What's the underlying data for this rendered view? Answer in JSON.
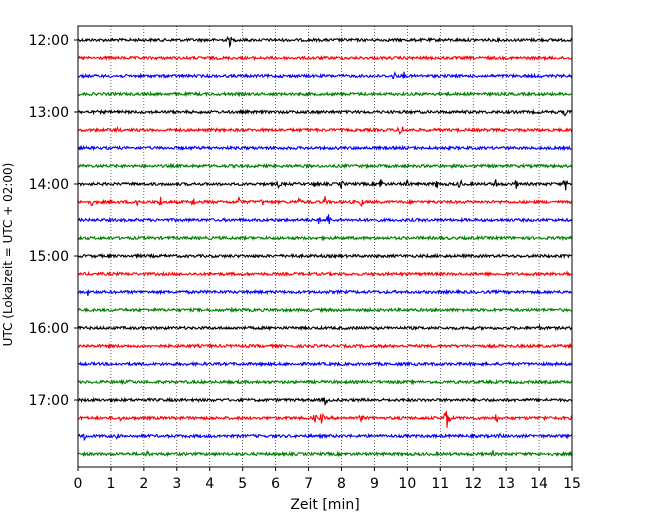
{
  "chart_data": {
    "type": "line",
    "title": "",
    "xlabel": "Zeit  [min]",
    "ylabel": "UTC (Lokalzeit = UTC + 02:00)",
    "xlim": [
      0,
      15
    ],
    "x_ticks": [
      "0",
      "1",
      "2",
      "3",
      "4",
      "5",
      "6",
      "7",
      "8",
      "9",
      "10",
      "11",
      "12",
      "13",
      "14",
      "15"
    ],
    "y_tick_labels": [
      "12:00",
      "13:00",
      "14:00",
      "15:00",
      "16:00",
      "17:00"
    ],
    "grid": "vertical dotted at each minute",
    "row_interval_minutes": 15,
    "series": [
      {
        "start": "12:00",
        "color": "#000000",
        "events": [
          {
            "t": 4.6,
            "a": 8
          }
        ]
      },
      {
        "start": "12:15",
        "color": "#ff0000",
        "events": []
      },
      {
        "start": "12:30",
        "color": "#0000ff",
        "events": [
          {
            "t": 9.6,
            "a": 6
          },
          {
            "t": 9.9,
            "a": 5
          }
        ]
      },
      {
        "start": "12:45",
        "color": "#008000",
        "events": []
      },
      {
        "start": "13:00",
        "color": "#000000",
        "events": [
          {
            "t": 14.8,
            "a": 6
          }
        ]
      },
      {
        "start": "13:15",
        "color": "#ff0000",
        "events": [
          {
            "t": 9.8,
            "a": 11
          },
          {
            "t": 1.2,
            "a": 4
          }
        ]
      },
      {
        "start": "13:30",
        "color": "#0000ff",
        "events": []
      },
      {
        "start": "13:45",
        "color": "#008000",
        "events": []
      },
      {
        "start": "14:00",
        "color": "#000000",
        "events": [
          {
            "t": 6.1,
            "a": 6
          },
          {
            "t": 7.2,
            "a": 5
          },
          {
            "t": 8.0,
            "a": 6
          },
          {
            "t": 9.2,
            "a": 8
          },
          {
            "t": 10.0,
            "a": 6
          },
          {
            "t": 10.9,
            "a": 6
          },
          {
            "t": 11.6,
            "a": 7
          },
          {
            "t": 12.7,
            "a": 7
          },
          {
            "t": 13.3,
            "a": 6
          },
          {
            "t": 14.8,
            "a": 8
          }
        ]
      },
      {
        "start": "14:15",
        "color": "#ff0000",
        "events": [
          {
            "t": 0.4,
            "a": 6
          },
          {
            "t": 1.8,
            "a": 8
          },
          {
            "t": 2.5,
            "a": 7
          },
          {
            "t": 3.5,
            "a": 6
          },
          {
            "t": 4.9,
            "a": 7
          },
          {
            "t": 5.6,
            "a": 5
          },
          {
            "t": 6.7,
            "a": 6
          },
          {
            "t": 7.5,
            "a": 6
          },
          {
            "t": 8.6,
            "a": 6
          }
        ]
      },
      {
        "start": "14:30",
        "color": "#0000ff",
        "events": [
          {
            "t": 7.6,
            "a": 9
          },
          {
            "t": 7.3,
            "a": 5
          }
        ]
      },
      {
        "start": "14:45",
        "color": "#008000",
        "events": []
      },
      {
        "start": "15:00",
        "color": "#000000",
        "events": [
          {
            "t": 6.5,
            "a": 4
          }
        ]
      },
      {
        "start": "15:15",
        "color": "#ff0000",
        "events": [
          {
            "t": 14.8,
            "a": 7
          }
        ]
      },
      {
        "start": "15:30",
        "color": "#0000ff",
        "events": [
          {
            "t": 0.3,
            "a": 4
          }
        ]
      },
      {
        "start": "15:45",
        "color": "#008000",
        "events": [
          {
            "t": 4.7,
            "a": 3
          }
        ]
      },
      {
        "start": "16:00",
        "color": "#000000",
        "events": [
          {
            "t": 14.0,
            "a": 4
          }
        ]
      },
      {
        "start": "16:15",
        "color": "#ff0000",
        "events": []
      },
      {
        "start": "16:30",
        "color": "#0000ff",
        "events": []
      },
      {
        "start": "16:45",
        "color": "#008000",
        "events": [
          {
            "t": 1.6,
            "a": 4
          }
        ]
      },
      {
        "start": "17:00",
        "color": "#000000",
        "events": [
          {
            "t": 7.5,
            "a": 7
          }
        ]
      },
      {
        "start": "17:15",
        "color": "#ff0000",
        "events": [
          {
            "t": 11.2,
            "a": 18
          },
          {
            "t": 7.2,
            "a": 6
          },
          {
            "t": 7.4,
            "a": 7
          },
          {
            "t": 8.6,
            "a": 6
          },
          {
            "t": 12.7,
            "a": 6
          },
          {
            "t": 14.2,
            "a": 4
          },
          {
            "t": 1.3,
            "a": 4
          }
        ]
      },
      {
        "start": "17:30",
        "color": "#0000ff",
        "events": [
          {
            "t": 0.2,
            "a": 6
          },
          {
            "t": 1.2,
            "a": 4
          },
          {
            "t": 12.8,
            "a": 4
          }
        ]
      },
      {
        "start": "17:45",
        "color": "#008000",
        "events": [
          {
            "t": 2.1,
            "a": 5
          },
          {
            "t": 12.6,
            "a": 4
          }
        ]
      }
    ]
  }
}
